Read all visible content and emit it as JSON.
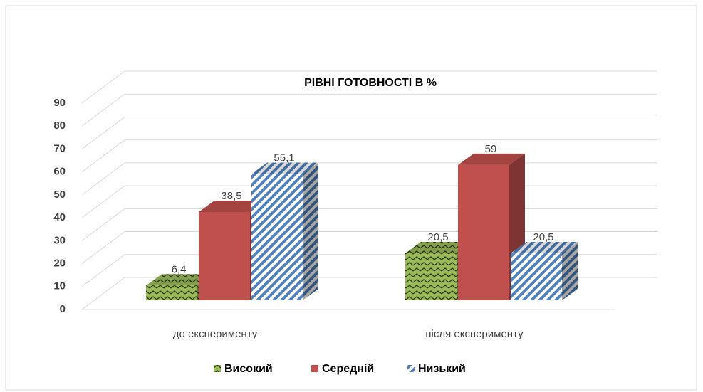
{
  "chart_data": {
    "type": "bar3d",
    "title": "РІВНІ ГОТОВНОСТІ В %",
    "categories": [
      "до експерименту",
      "після експерименту"
    ],
    "series": [
      {
        "name": "Високий",
        "color": "#9bbb59",
        "pattern": "zigzag",
        "values": [
          6.4,
          20.5
        ],
        "value_labels": [
          "6,4",
          "20,5"
        ]
      },
      {
        "name": "Середній",
        "color": "#c0504d",
        "pattern": "solid",
        "values": [
          38.5,
          59
        ],
        "value_labels": [
          "38,5",
          "59"
        ]
      },
      {
        "name": "Низький",
        "color": "#4f81bd",
        "pattern": "stripes",
        "values": [
          55.1,
          20.5
        ],
        "value_labels": [
          "55,1",
          "20,5"
        ]
      }
    ],
    "ylim": [
      0,
      90
    ],
    "yticks": [
      0,
      10,
      20,
      30,
      40,
      50,
      60,
      70,
      80,
      90
    ],
    "grid": true,
    "legend": "bottom"
  }
}
